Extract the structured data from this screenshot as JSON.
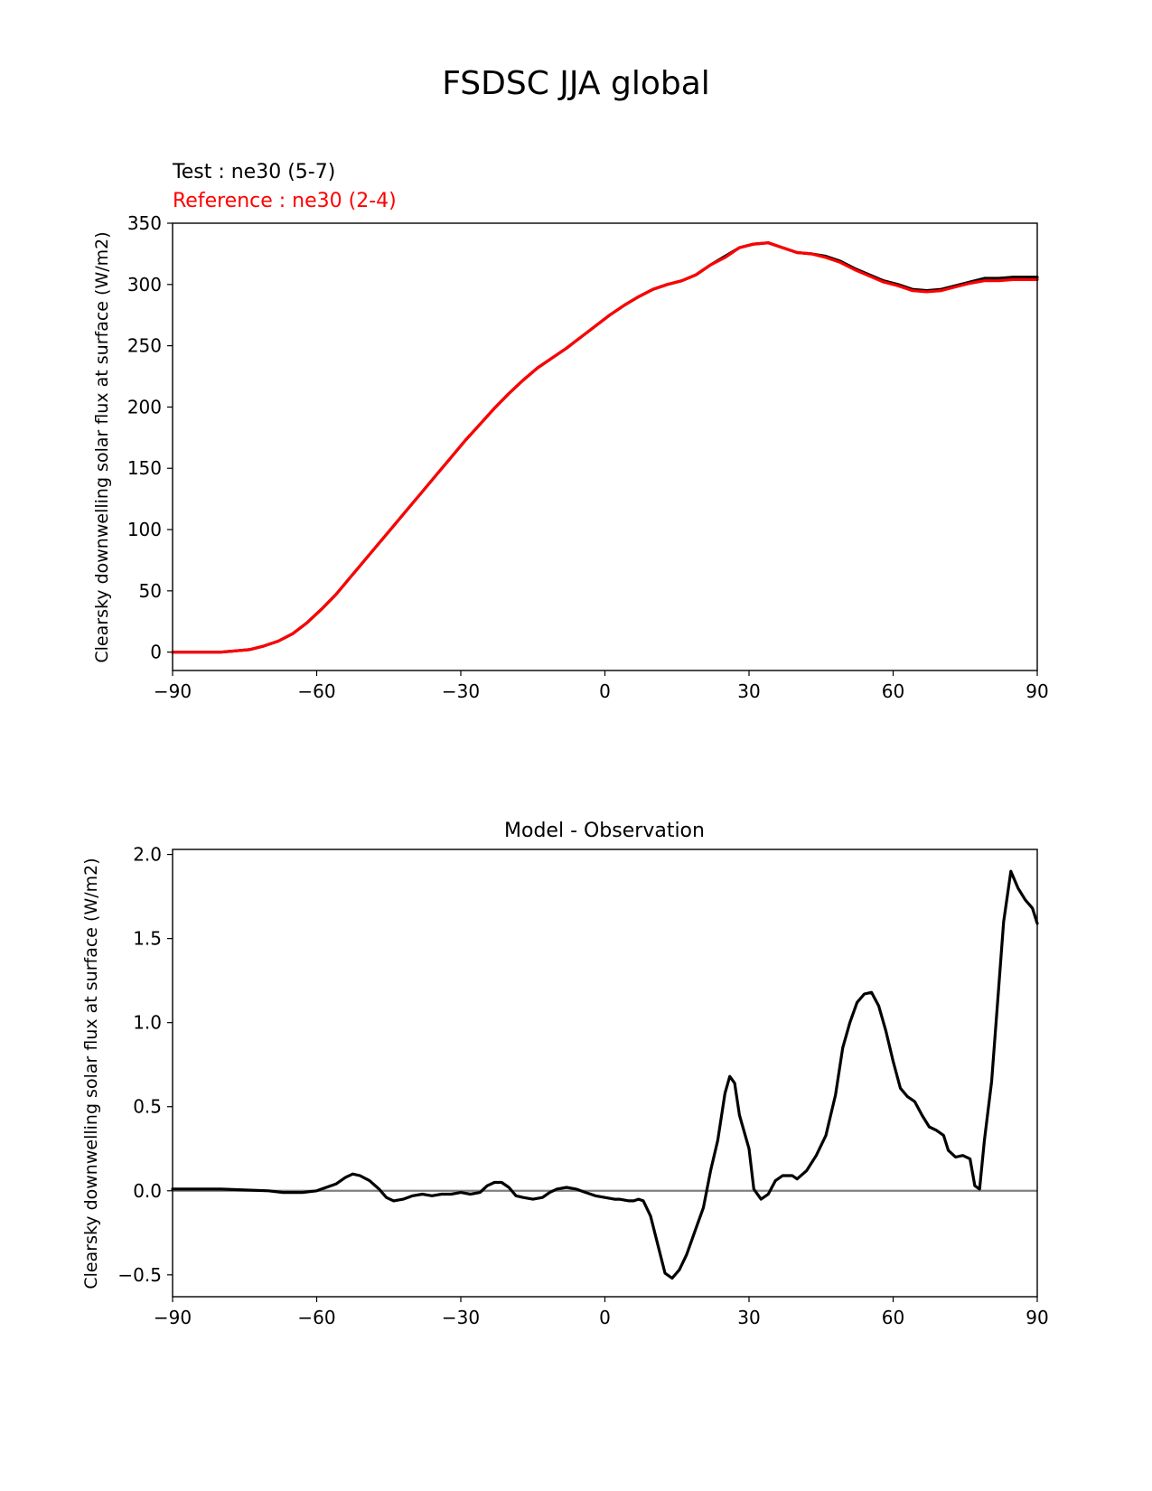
{
  "figure": {
    "suptitle": "FSDSC JJA global"
  },
  "chart_data": [
    {
      "type": "line",
      "title": "",
      "test_label": "Test : ne30 (5-7)",
      "ref_label": "Reference : ne30 (2-4)",
      "xlabel": "",
      "ylabel": "Clearsky downwelling solar flux at surface (W/m2)",
      "xlim": [
        -90,
        90
      ],
      "ylim": [
        -15,
        350
      ],
      "xticks": [
        -90,
        -60,
        -30,
        0,
        30,
        60,
        90
      ],
      "xtick_labels": [
        "−90",
        "−60",
        "−30",
        "0",
        "30",
        "60",
        "90"
      ],
      "yticks": [
        0,
        50,
        100,
        150,
        200,
        250,
        300,
        350
      ],
      "ytick_labels": [
        "0",
        "50",
        "100",
        "150",
        "200",
        "250",
        "300",
        "350"
      ],
      "series": [
        {
          "color": "#000000",
          "x": [
            -90,
            -85,
            -80,
            -77,
            -74,
            -71,
            -68,
            -65,
            -62,
            -59,
            -56,
            -53,
            -50,
            -47,
            -44,
            -41,
            -38,
            -35,
            -32,
            -29,
            -26,
            -23,
            -20,
            -17,
            -14,
            -11,
            -8,
            -5,
            -2,
            1,
            4,
            7,
            10,
            13,
            16,
            19,
            22,
            25,
            28,
            31,
            34,
            37,
            40,
            43,
            46,
            49,
            52,
            55,
            58,
            61,
            64,
            67,
            70,
            73,
            76,
            79,
            82,
            85,
            88,
            90
          ],
          "y": [
            0,
            0,
            0,
            1,
            2,
            5,
            9,
            15,
            24,
            35,
            47,
            61,
            75,
            89,
            103,
            117,
            131,
            145,
            159,
            173,
            186,
            199,
            211,
            222,
            232,
            240,
            248,
            257,
            266,
            275,
            283,
            290,
            296,
            300,
            303,
            308,
            316,
            323,
            330,
            333,
            334,
            330,
            326,
            325,
            323,
            319,
            313,
            308,
            303,
            300,
            296,
            295,
            296,
            299,
            302,
            305,
            305,
            306,
            306,
            306
          ]
        },
        {
          "color": "#ff0000",
          "x": [
            -90,
            -85,
            -80,
            -77,
            -74,
            -71,
            -68,
            -65,
            -62,
            -59,
            -56,
            -53,
            -50,
            -47,
            -44,
            -41,
            -38,
            -35,
            -32,
            -29,
            -26,
            -23,
            -20,
            -17,
            -14,
            -11,
            -8,
            -5,
            -2,
            1,
            4,
            7,
            10,
            13,
            16,
            19,
            22,
            25,
            28,
            31,
            34,
            37,
            40,
            43,
            46,
            49,
            52,
            55,
            58,
            61,
            64,
            67,
            70,
            73,
            76,
            79,
            82,
            85,
            88,
            90
          ],
          "y": [
            0,
            0,
            0,
            1,
            2,
            5,
            9,
            15,
            24,
            35,
            47,
            61,
            75,
            89,
            103,
            117,
            131,
            145,
            159,
            173,
            186,
            199,
            211,
            222,
            232,
            240,
            248,
            257,
            266,
            275,
            283,
            290,
            296,
            300,
            303,
            308,
            316,
            322,
            330,
            333,
            334,
            330,
            326,
            325,
            322,
            318,
            312,
            307,
            302,
            299,
            295,
            294,
            295,
            298,
            301,
            303,
            303,
            304,
            304,
            304
          ]
        }
      ]
    },
    {
      "type": "line",
      "title": "Model - Observation",
      "xlabel": "",
      "ylabel": "Clearsky downwelling solar flux at surface (W/m2)",
      "xlim": [
        -90,
        90
      ],
      "ylim": [
        -0.63,
        2.03
      ],
      "xticks": [
        -90,
        -60,
        -30,
        0,
        30,
        60,
        90
      ],
      "xtick_labels": [
        "−90",
        "−60",
        "−30",
        "0",
        "30",
        "60",
        "90"
      ],
      "yticks": [
        -0.5,
        0.0,
        0.5,
        1.0,
        1.5,
        2.0
      ],
      "ytick_labels": [
        "−0.5",
        "0.0",
        "0.5",
        "1.0",
        "1.5",
        "2.0"
      ],
      "zero_line": {
        "y": 0,
        "color": "#808080"
      },
      "series": [
        {
          "color": "#000000",
          "x": [
            -90,
            -80,
            -70,
            -67,
            -63,
            -60,
            -58,
            -56,
            -54,
            -52.5,
            -51,
            -49,
            -47,
            -45.5,
            -44,
            -42,
            -40,
            -38,
            -36,
            -34,
            -32,
            -30,
            -28,
            -26,
            -24.5,
            -23,
            -21.5,
            -20,
            -18.5,
            -17,
            -15,
            -13,
            -11.5,
            -10,
            -8,
            -6,
            -4,
            -2,
            0,
            2,
            3,
            5,
            6,
            7,
            8,
            9.5,
            11,
            12.5,
            14,
            15.5,
            17,
            19,
            20.5,
            22,
            23.5,
            25,
            26,
            27,
            28,
            30,
            31,
            32.5,
            34,
            35.5,
            37,
            39,
            40,
            42,
            44,
            46,
            47,
            48,
            49.5,
            51,
            52.5,
            54,
            55.5,
            57,
            58.5,
            60,
            61.5,
            63,
            64.5,
            66,
            67.5,
            69,
            70.5,
            71.5,
            73,
            74.5,
            76,
            77,
            78,
            79,
            80.5,
            82,
            83,
            84.5,
            86,
            87.5,
            89,
            90
          ],
          "y": [
            0.01,
            0.01,
            0.0,
            -0.01,
            -0.01,
            0.0,
            0.02,
            0.04,
            0.08,
            0.1,
            0.09,
            0.06,
            0.01,
            -0.04,
            -0.06,
            -0.05,
            -0.03,
            -0.02,
            -0.03,
            -0.02,
            -0.02,
            -0.01,
            -0.02,
            -0.01,
            0.03,
            0.05,
            0.05,
            0.02,
            -0.03,
            -0.04,
            -0.05,
            -0.04,
            -0.01,
            0.01,
            0.02,
            0.01,
            -0.01,
            -0.03,
            -0.04,
            -0.05,
            -0.05,
            -0.06,
            -0.06,
            -0.05,
            -0.06,
            -0.15,
            -0.32,
            -0.49,
            -0.52,
            -0.47,
            -0.38,
            -0.22,
            -0.1,
            0.12,
            0.3,
            0.58,
            0.68,
            0.64,
            0.45,
            0.25,
            0.01,
            -0.05,
            -0.02,
            0.06,
            0.09,
            0.09,
            0.07,
            0.12,
            0.21,
            0.33,
            0.45,
            0.57,
            0.85,
            1.0,
            1.12,
            1.17,
            1.18,
            1.1,
            0.95,
            0.77,
            0.61,
            0.56,
            0.53,
            0.45,
            0.38,
            0.36,
            0.33,
            0.24,
            0.2,
            0.21,
            0.19,
            0.03,
            0.01,
            0.3,
            0.65,
            1.22,
            1.6,
            1.9,
            1.8,
            1.73,
            1.68,
            1.59
          ]
        }
      ]
    }
  ]
}
